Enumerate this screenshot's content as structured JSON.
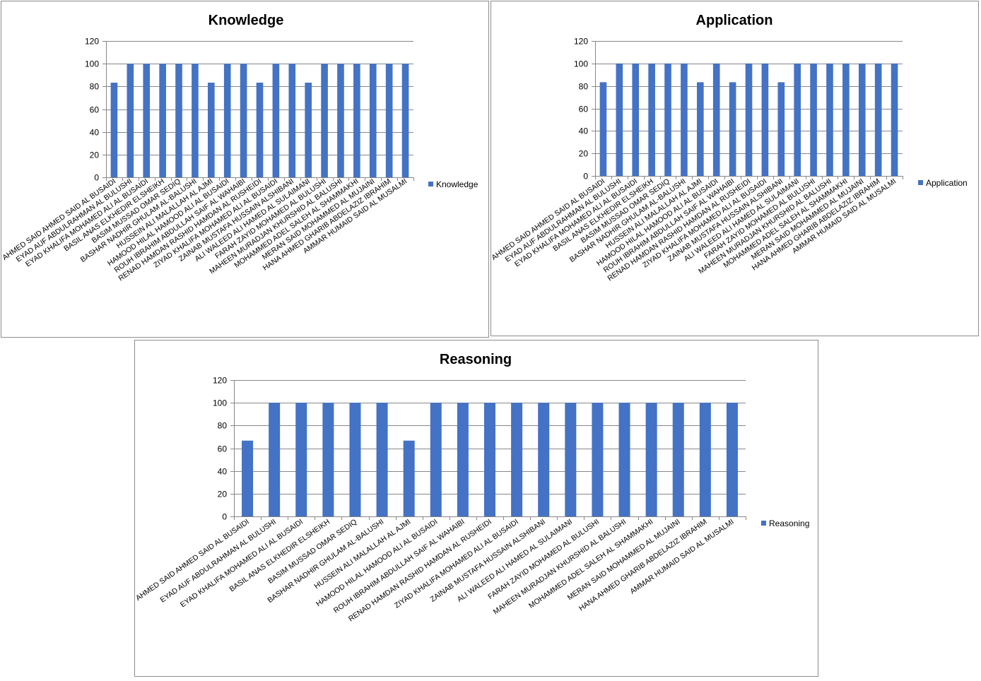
{
  "charts": {
    "bar_color": "#4472C4",
    "grid_color": "#878787",
    "students": [
      "AHMED SAID AHMED  SAID AL BUSAIDI",
      "EYAD AUF ABDULRAHMAN AL BULUSHI",
      "EYAD KHALIFA MOHAMED ALI AL BUSAIDI",
      "BASIL ANAS ELKHEDIR ELSHEIKH",
      "BASIM MUSSAD OMAR SEDIQ",
      "BASHAR NADHIR GHULAM AL-BALUSHI",
      "HUSSEIN ALI MALALLAH AL AJMI",
      "HAMOOD HILAL HAMOOD ALI AL BUSAIDI",
      "ROUH IBRAHIM ABDULLAH SAIF AL WAHAIBI",
      "RENAD HAMDAN RASHID HAMDAN AL RUSHEIDI",
      "ZIYAD KHALIFA MOHAMED ALI AL BUSAIDI",
      "ZAINAB MUSTAFA HUSSAIN ALSHIBANI",
      "ALI WALEED ALI HAMED  AL SULAIMANI",
      "FARAH ZAYID MOHAMED AL BULUSHI",
      "MAHEEN MURADJAN KHURSHID  AL BALUSHI",
      "MOHAMMED ADEL SALEH AL SHAMMAKHI",
      "MERAN SAID MOHAMMED AL MUJAINI",
      "HANA AHMED GHARIB ABDELAZIZ IBRAHIM",
      "AMMAR HUMAID SAID AL MUSALMI"
    ]
  },
  "chart_data": [
    {
      "type": "bar",
      "title": "Knowledge",
      "legend": "Knowledge",
      "legend_position": "right",
      "xlabel": "",
      "ylabel": "",
      "ylim": [
        0,
        120
      ],
      "yticks": [
        "0",
        "20",
        "40",
        "60",
        "80",
        "100",
        "120"
      ],
      "values": [
        83.3,
        100,
        100,
        100,
        100,
        100,
        83.3,
        100,
        100,
        83.3,
        100,
        100,
        83.3,
        100,
        100,
        100,
        100,
        100,
        100
      ]
    },
    {
      "type": "bar",
      "title": "Application",
      "legend": "Application",
      "legend_position": "right",
      "xlabel": "",
      "ylabel": "",
      "ylim": [
        0,
        120
      ],
      "yticks": [
        "0",
        "20",
        "40",
        "60",
        "80",
        "100",
        "120"
      ],
      "values": [
        83.3,
        100,
        100,
        100,
        100,
        100,
        83.3,
        100,
        83.3,
        100,
        100,
        83.3,
        100,
        100,
        100,
        100,
        100,
        100,
        100
      ]
    },
    {
      "type": "bar",
      "title": "Reasoning",
      "legend": "Reasoning",
      "legend_position": "right",
      "xlabel": "",
      "ylabel": "",
      "ylim": [
        0,
        120
      ],
      "yticks": [
        "0",
        "20",
        "40",
        "60",
        "80",
        "100",
        "120"
      ],
      "values": [
        66.7,
        100,
        100,
        100,
        100,
        100,
        66.7,
        100,
        100,
        100,
        100,
        100,
        100,
        100,
        100,
        100,
        100,
        100,
        100
      ]
    }
  ]
}
